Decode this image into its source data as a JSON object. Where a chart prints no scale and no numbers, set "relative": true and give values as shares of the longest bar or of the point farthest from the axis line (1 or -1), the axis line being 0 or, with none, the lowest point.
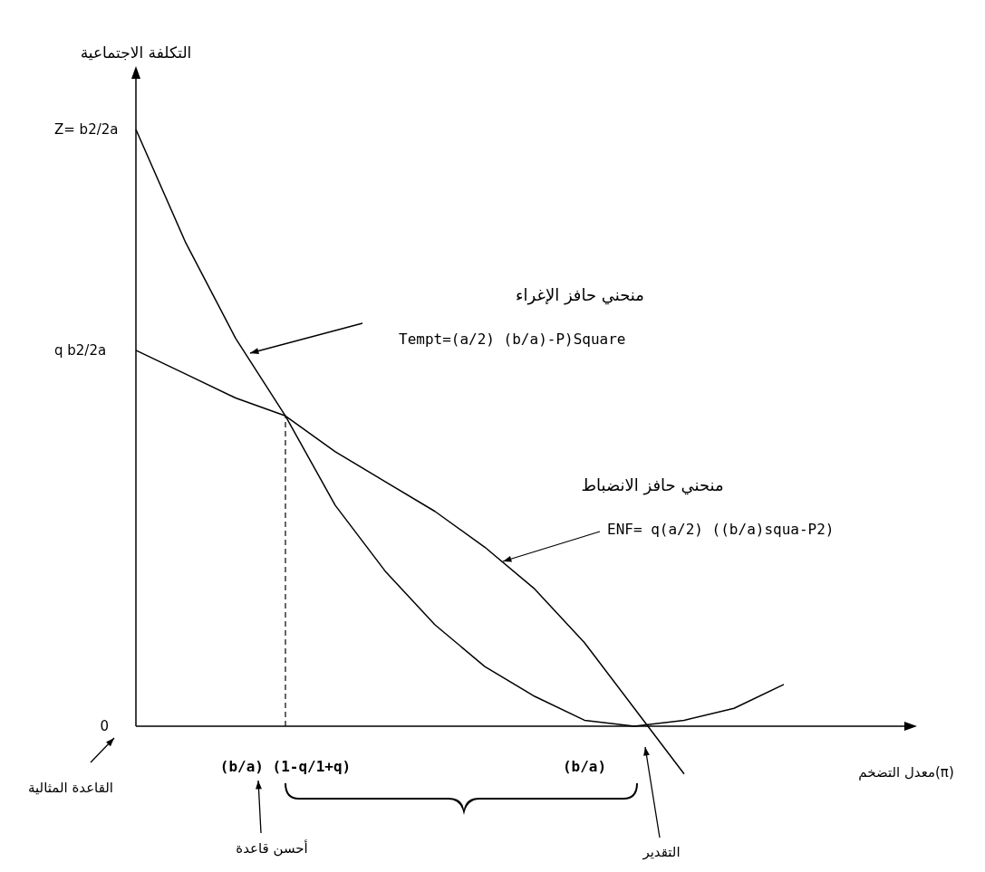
{
  "chart_data": {
    "type": "line",
    "relative": true,
    "xlabel": "معدل التضخم(π)",
    "ylabel": "التكلفة الاجتماعية",
    "categories": [
      null,
      null,
      null,
      "(b/a) (1-q/1+q)",
      null,
      null,
      null,
      null,
      null,
      "(b/a)",
      null,
      null,
      null,
      null
    ],
    "series": [
      {
        "color": "#000000",
        "values": [
          1.0,
          0.81,
          0.65,
          0.52,
          0.37,
          0.26,
          0.17,
          0.1,
          0.05,
          0.01,
          0.0,
          0.01,
          0.03,
          0.07
        ]
      },
      {
        "color": "#000000",
        "values": [
          0.63,
          0.59,
          0.55,
          0.52,
          0.46,
          0.41,
          0.36,
          0.3,
          0.23,
          0.14,
          0.03,
          -0.08,
          null,
          null
        ]
      }
    ],
    "ref_lines": [
      {
        "axis": "x",
        "value": "(b/a) (1-q/1+q)",
        "line_style": "dashed"
      }
    ],
    "annotations": [
      "Z= b2/2a",
      "q b2/2a",
      "0",
      "منحني حافز الإغراء",
      "Tempt=(a/2) (b/a)-P)Square",
      "منحني حافز الانضباط",
      "ENF= q(a/2) ((b/a)squa-P2)",
      "القاعدة المثالية",
      "أحسن قاعدة",
      "التقدير"
    ],
    "legend": false,
    "marker": "none",
    "line_style": "solid"
  }
}
